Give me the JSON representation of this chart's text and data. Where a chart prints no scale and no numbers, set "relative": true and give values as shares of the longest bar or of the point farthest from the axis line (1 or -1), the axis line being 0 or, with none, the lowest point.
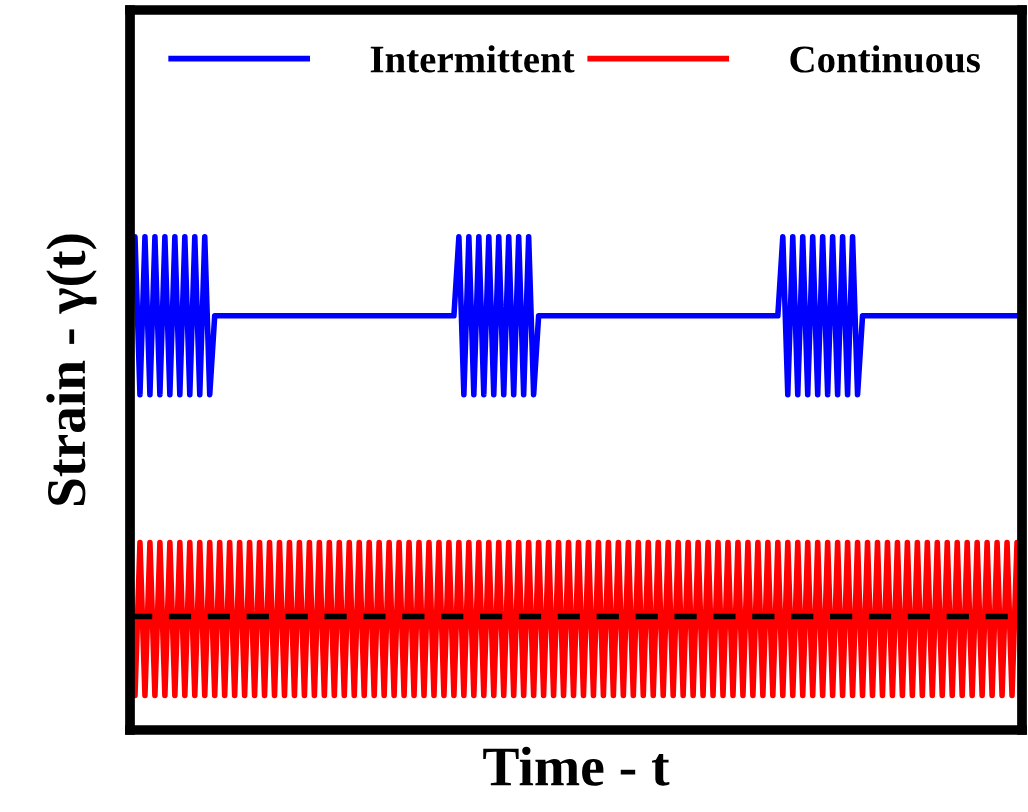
{
  "chart_data": {
    "type": "line",
    "relative": true,
    "xlabel": "Time - t",
    "ylabel": "Strain - γ(t)",
    "legend": "top",
    "marker": "none",
    "line_style": "solid",
    "categories": [
      null,
      null,
      null,
      null,
      null,
      null,
      null,
      null,
      null,
      null,
      null,
      null,
      null,
      null,
      null,
      null,
      null,
      null,
      null,
      null,
      null,
      null,
      null,
      null,
      null,
      null,
      null,
      null,
      null,
      null,
      null,
      null,
      null,
      null,
      null,
      null,
      null,
      null,
      null,
      null,
      null,
      null,
      null,
      null,
      null,
      null,
      null,
      null,
      null,
      null,
      null,
      null,
      null,
      null,
      null,
      null,
      null,
      null,
      null,
      null,
      null,
      null,
      null,
      null,
      null,
      null,
      null,
      null,
      null,
      null,
      null,
      null,
      null,
      null,
      null,
      null,
      null,
      null,
      null,
      null,
      null,
      null,
      null,
      null,
      null,
      null,
      null,
      null,
      null,
      null,
      null,
      null,
      null,
      null,
      null,
      null,
      null,
      null,
      null,
      null,
      null,
      null,
      null,
      null,
      null,
      null,
      null,
      null,
      null,
      null,
      null,
      null,
      null,
      null,
      null,
      null,
      null,
      null,
      null,
      null,
      null,
      null,
      null,
      null,
      null,
      null,
      null,
      null,
      null,
      null,
      null,
      null,
      null,
      null,
      null,
      null,
      null,
      null,
      null,
      null,
      null,
      null,
      null,
      null,
      null,
      null,
      null,
      null,
      null,
      null,
      null,
      null,
      null,
      null,
      null,
      null,
      null,
      null,
      null,
      null,
      null,
      null,
      null,
      null,
      null,
      null,
      null,
      null,
      null,
      null,
      null,
      null,
      null,
      null,
      null,
      null,
      null,
      null,
      null,
      null
    ],
    "series": [
      {
        "name": "Intermittent",
        "color": "#0000ff",
        "values": [
          0.84,
          1,
          0.68,
          1,
          0.68,
          1,
          0.68,
          1,
          0.68,
          1,
          0.68,
          1,
          0.68,
          1,
          0.68,
          1,
          0.68,
          0.84,
          0.84,
          0.84,
          0.84,
          0.84,
          0.84,
          0.84,
          0.84,
          0.84,
          0.84,
          0.84,
          0.84,
          0.84,
          0.84,
          0.84,
          0.84,
          0.84,
          0.84,
          0.84,
          0.84,
          0.84,
          0.84,
          0.84,
          0.84,
          0.84,
          0.84,
          0.84,
          0.84,
          0.84,
          0.84,
          0.84,
          0.84,
          0.84,
          0.84,
          0.84,
          0.84,
          0.84,
          0.84,
          0.84,
          0.84,
          0.84,
          0.84,
          0.84,
          0.84,
          0.84,
          0.84,
          0.84,
          0.84,
          0.84,
          1,
          0.68,
          1,
          0.68,
          1,
          0.68,
          1,
          0.68,
          1,
          0.68,
          1,
          0.68,
          1,
          0.68,
          1,
          0.68,
          0.84,
          0.84,
          0.84,
          0.84,
          0.84,
          0.84,
          0.84,
          0.84,
          0.84,
          0.84,
          0.84,
          0.84,
          0.84,
          0.84,
          0.84,
          0.84,
          0.84,
          0.84,
          0.84,
          0.84,
          0.84,
          0.84,
          0.84,
          0.84,
          0.84,
          0.84,
          0.84,
          0.84,
          0.84,
          0.84,
          0.84,
          0.84,
          0.84,
          0.84,
          0.84,
          0.84,
          0.84,
          0.84,
          0.84,
          0.84,
          0.84,
          0.84,
          0.84,
          0.84,
          0.84,
          0.84,
          0.84,
          0.84,
          0.84,
          1,
          0.68,
          1,
          0.68,
          1,
          0.68,
          1,
          0.68,
          1,
          0.68,
          1,
          0.68,
          1,
          0.68,
          1,
          0.68,
          0.84,
          0.84,
          0.84,
          0.84,
          0.84,
          0.84,
          0.84,
          0.84,
          0.84,
          0.84,
          0.84,
          0.84,
          0.84,
          0.84,
          0.84,
          0.84,
          0.84,
          0.84,
          0.84,
          0.84,
          0.84,
          0.84,
          0.84,
          0.84,
          0.84,
          0.84,
          0.84,
          0.84,
          0.84,
          0.84,
          0.84,
          0.84,
          0.84
        ]
      },
      {
        "name": "Continuous",
        "color": "#ff0000",
        "values": [
          0.38,
          0.07,
          0.38,
          0.07,
          0.38,
          0.07,
          0.38,
          0.07,
          0.38,
          0.07,
          0.38,
          0.07,
          0.38,
          0.07,
          0.38,
          0.07,
          0.38,
          0.07,
          0.38,
          0.07,
          0.38,
          0.07,
          0.38,
          0.07,
          0.38,
          0.07,
          0.38,
          0.07,
          0.38,
          0.07,
          0.38,
          0.07,
          0.38,
          0.07,
          0.38,
          0.07,
          0.38,
          0.07,
          0.38,
          0.07,
          0.38,
          0.07,
          0.38,
          0.07,
          0.38,
          0.07,
          0.38,
          0.07,
          0.38,
          0.07,
          0.38,
          0.07,
          0.38,
          0.07,
          0.38,
          0.07,
          0.38,
          0.07,
          0.38,
          0.07,
          0.38,
          0.07,
          0.38,
          0.07,
          0.38,
          0.07,
          0.38,
          0.07,
          0.38,
          0.07,
          0.38,
          0.07,
          0.38,
          0.07,
          0.38,
          0.07,
          0.38,
          0.07,
          0.38,
          0.07,
          0.38,
          0.07,
          0.38,
          0.07,
          0.38,
          0.07,
          0.38,
          0.07,
          0.38,
          0.07,
          0.38,
          0.07,
          0.38,
          0.07,
          0.38,
          0.07,
          0.38,
          0.07,
          0.38,
          0.07,
          0.38,
          0.07,
          0.38,
          0.07,
          0.38,
          0.07,
          0.38,
          0.07,
          0.38,
          0.07,
          0.38,
          0.07,
          0.38,
          0.07,
          0.38,
          0.07,
          0.38,
          0.07,
          0.38,
          0.07,
          0.38,
          0.07,
          0.38,
          0.07,
          0.38,
          0.07,
          0.38,
          0.07,
          0.38,
          0.07,
          0.38,
          0.07,
          0.38,
          0.07,
          0.38,
          0.07,
          0.38,
          0.07,
          0.38,
          0.07,
          0.38,
          0.07,
          0.38,
          0.07,
          0.38,
          0.07,
          0.38,
          0.07,
          0.38,
          0.07,
          0.38,
          0.07,
          0.38,
          0.07,
          0.38,
          0.07,
          0.38,
          0.07,
          0.38,
          0.07,
          0.38,
          0.07,
          0.38,
          0.07,
          0.38,
          0.07,
          0.38,
          0.07,
          0.38,
          0.07,
          0.38,
          0.07,
          0.38,
          0.07,
          0.38,
          0.07,
          0.38,
          0.07,
          0.38,
          0.07
        ]
      }
    ],
    "ref_lines": [
      {
        "axis": "y",
        "value": 0.23,
        "color": "#000000",
        "line_style": "dashed"
      }
    ]
  }
}
